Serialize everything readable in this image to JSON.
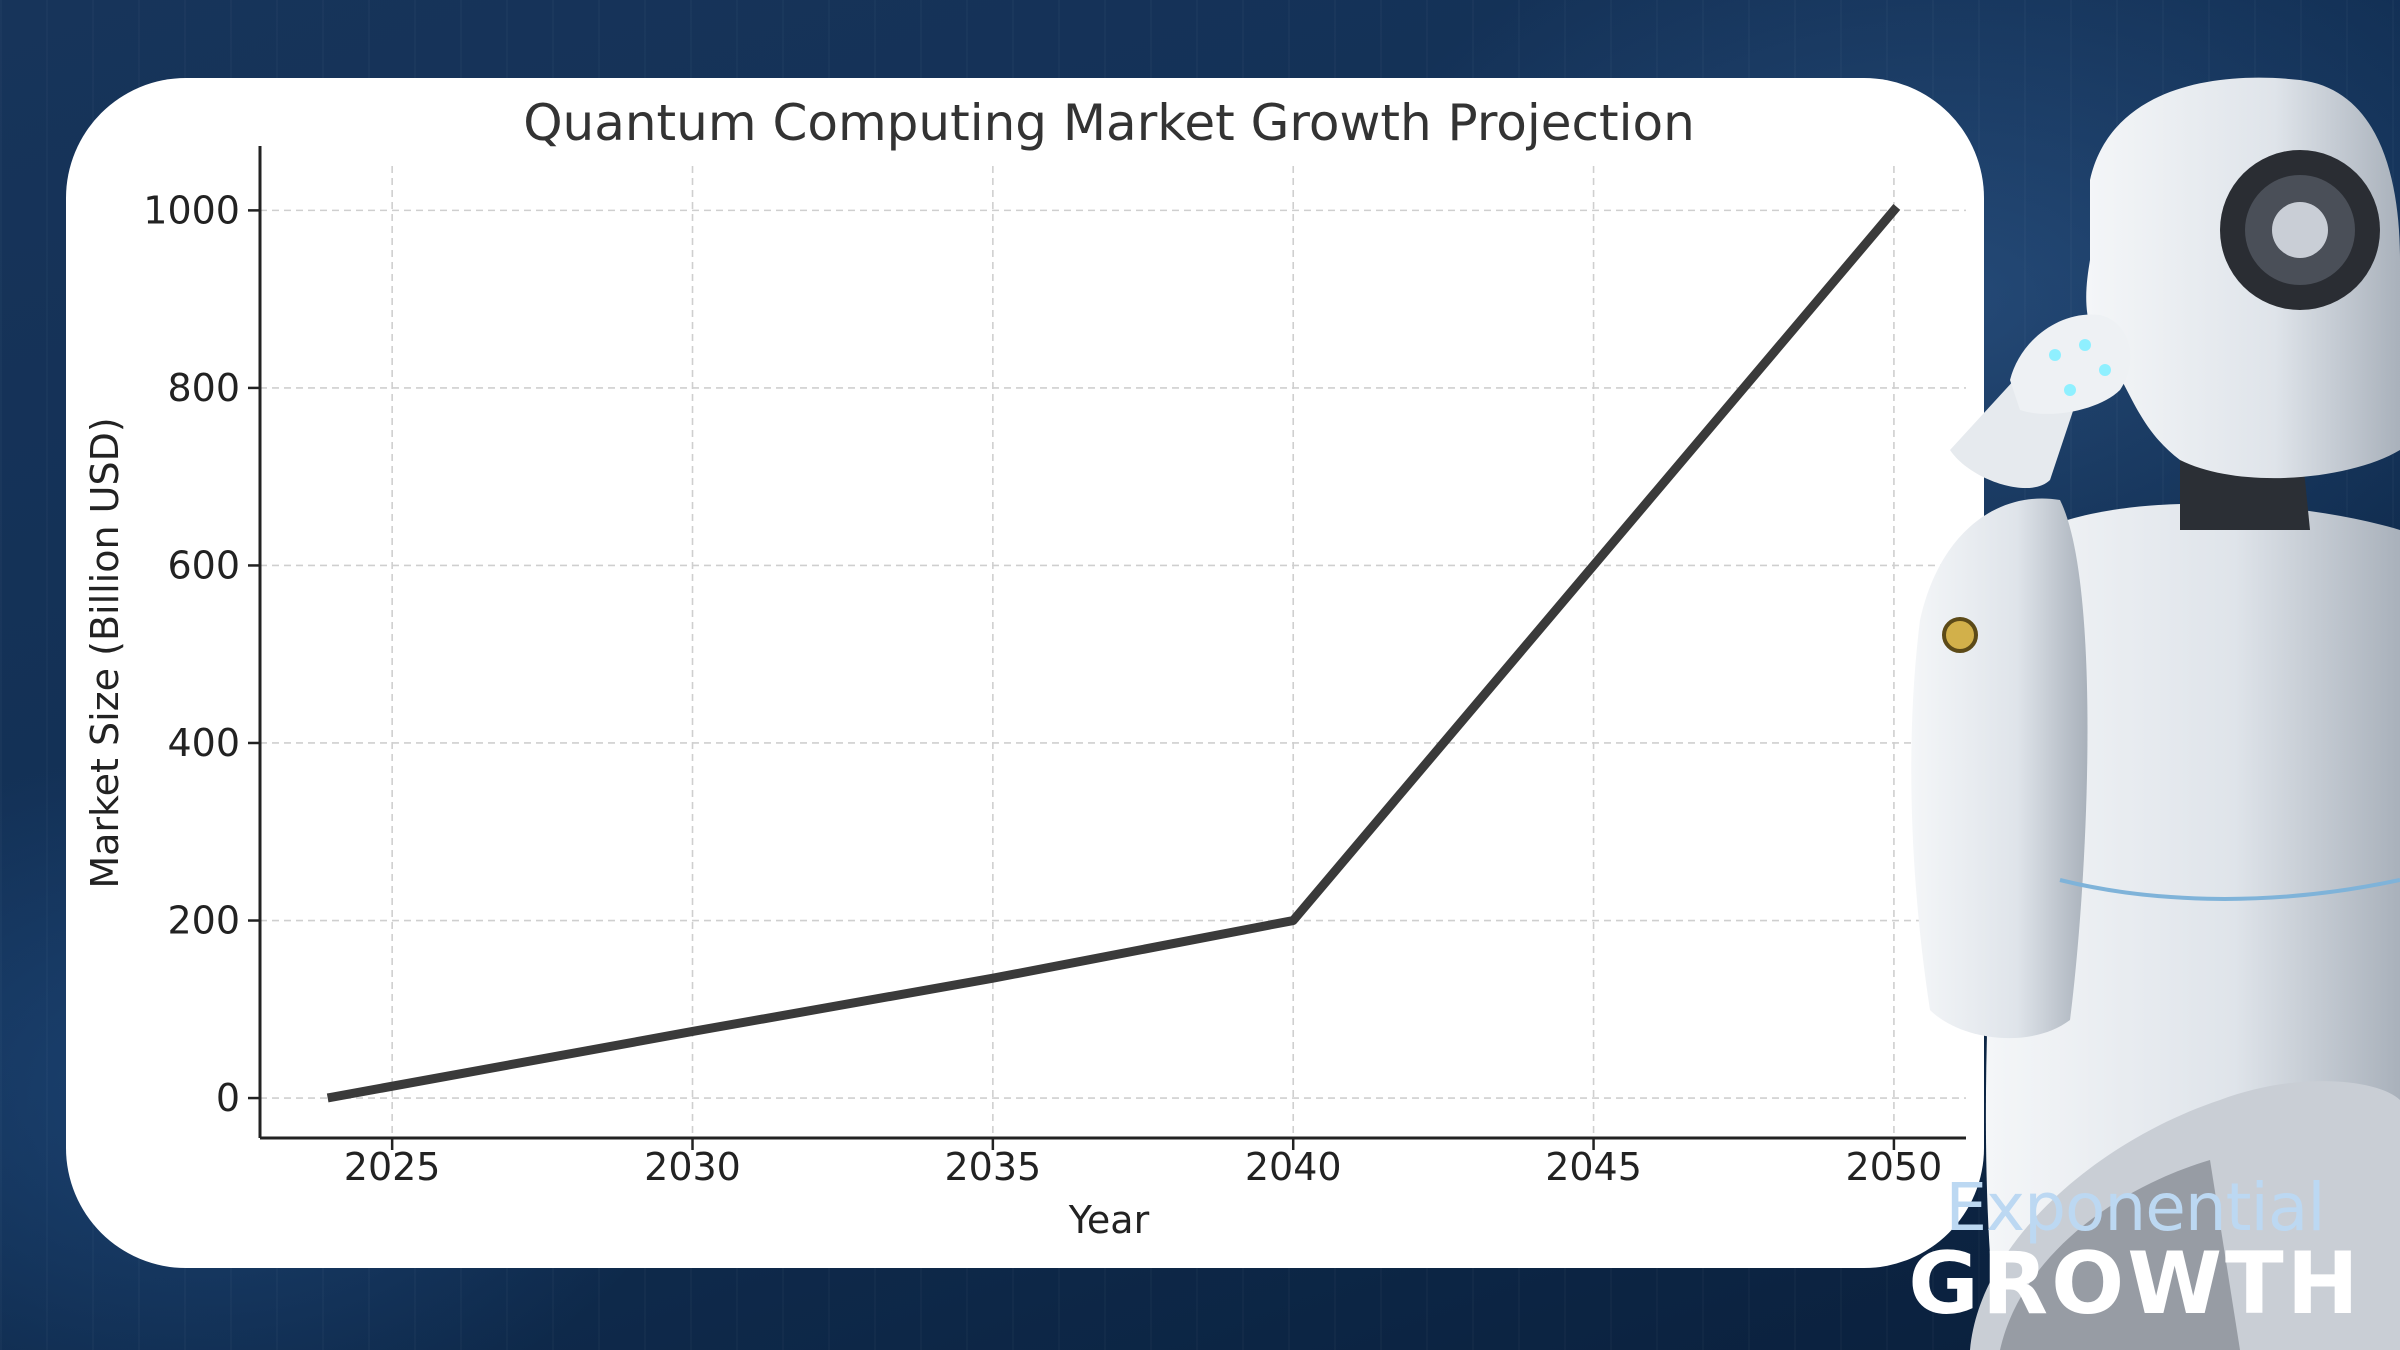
{
  "chart_data": {
    "type": "line",
    "title": "Quantum Computing Market Growth Projection",
    "xlabel": "Year",
    "ylabel": "Market Size (Billion USD)",
    "xlim": [
      2022.8,
      2051.2
    ],
    "ylim": [
      -45,
      1050
    ],
    "xticks": [
      2025,
      2030,
      2035,
      2040,
      2045,
      2050
    ],
    "yticks": [
      0,
      200,
      400,
      600,
      800,
      1000
    ],
    "grid": true,
    "series": [
      {
        "x": [
          2024,
          2030,
          2035,
          2040,
          2045,
          2050
        ],
        "values": [
          1,
          75,
          135,
          200,
          600,
          1000
        ],
        "color": "#3a3a3a"
      }
    ]
  },
  "brand": {
    "line1": "Exponential",
    "line2": "GROWTH"
  }
}
